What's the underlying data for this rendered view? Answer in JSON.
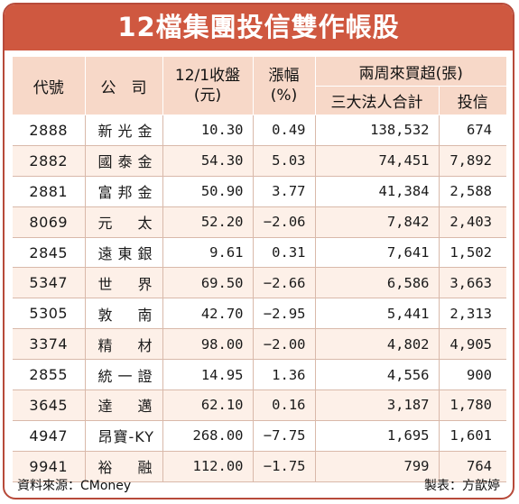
{
  "title": "12檔集團投信雙作帳股",
  "headers": {
    "code": "代號",
    "name": "公　司",
    "close_line1": "12/1收盤",
    "close_line2": "(元)",
    "change_line1": "漲幅",
    "change_line2": "(%)",
    "buy_group": "兩周來買超(張)",
    "institutional": "三大法人合計",
    "trust": "投信"
  },
  "rows": [
    {
      "code": "2888",
      "name": "新光金",
      "close": "10.30",
      "change": "0.49",
      "institutional": "138,532",
      "trust": "674"
    },
    {
      "code": "2882",
      "name": "國泰金",
      "close": "54.30",
      "change": "5.03",
      "institutional": "74,451",
      "trust": "7,892"
    },
    {
      "code": "2881",
      "name": "富邦金",
      "close": "50.90",
      "change": "3.77",
      "institutional": "41,384",
      "trust": "2,588"
    },
    {
      "code": "8069",
      "name": "元　太",
      "close": "52.20",
      "change": "−2.06",
      "institutional": "7,842",
      "trust": "2,403"
    },
    {
      "code": "2845",
      "name": "遠東銀",
      "close": "9.61",
      "change": "0.31",
      "institutional": "7,641",
      "trust": "1,502"
    },
    {
      "code": "5347",
      "name": "世　界",
      "close": "69.50",
      "change": "−2.66",
      "institutional": "6,586",
      "trust": "3,663"
    },
    {
      "code": "5305",
      "name": "敦　南",
      "close": "42.70",
      "change": "−2.95",
      "institutional": "5,441",
      "trust": "2,313"
    },
    {
      "code": "3374",
      "name": "精　材",
      "close": "98.00",
      "change": "−2.00",
      "institutional": "4,802",
      "trust": "4,905"
    },
    {
      "code": "2855",
      "name": "統一證",
      "close": "14.95",
      "change": "1.36",
      "institutional": "4,556",
      "trust": "900"
    },
    {
      "code": "3645",
      "name": "達　邁",
      "close": "62.10",
      "change": "0.16",
      "institutional": "3,187",
      "trust": "1,780"
    },
    {
      "code": "4947",
      "name": "昂寶-KY",
      "close": "268.00",
      "change": "−7.75",
      "institutional": "1,695",
      "trust": "1,601"
    },
    {
      "code": "9941",
      "name": "裕　融",
      "close": "112.00",
      "change": "−1.75",
      "institutional": "799",
      "trust": "764"
    }
  ],
  "footer": {
    "source": "資料來源：CMoney",
    "author": "製表：方歆婷"
  },
  "colors": {
    "title_bg": "#cf5840",
    "header_bg": "#f7d8c8",
    "stripe_bg": "#fdf0e8",
    "border": "#b74a3a"
  }
}
